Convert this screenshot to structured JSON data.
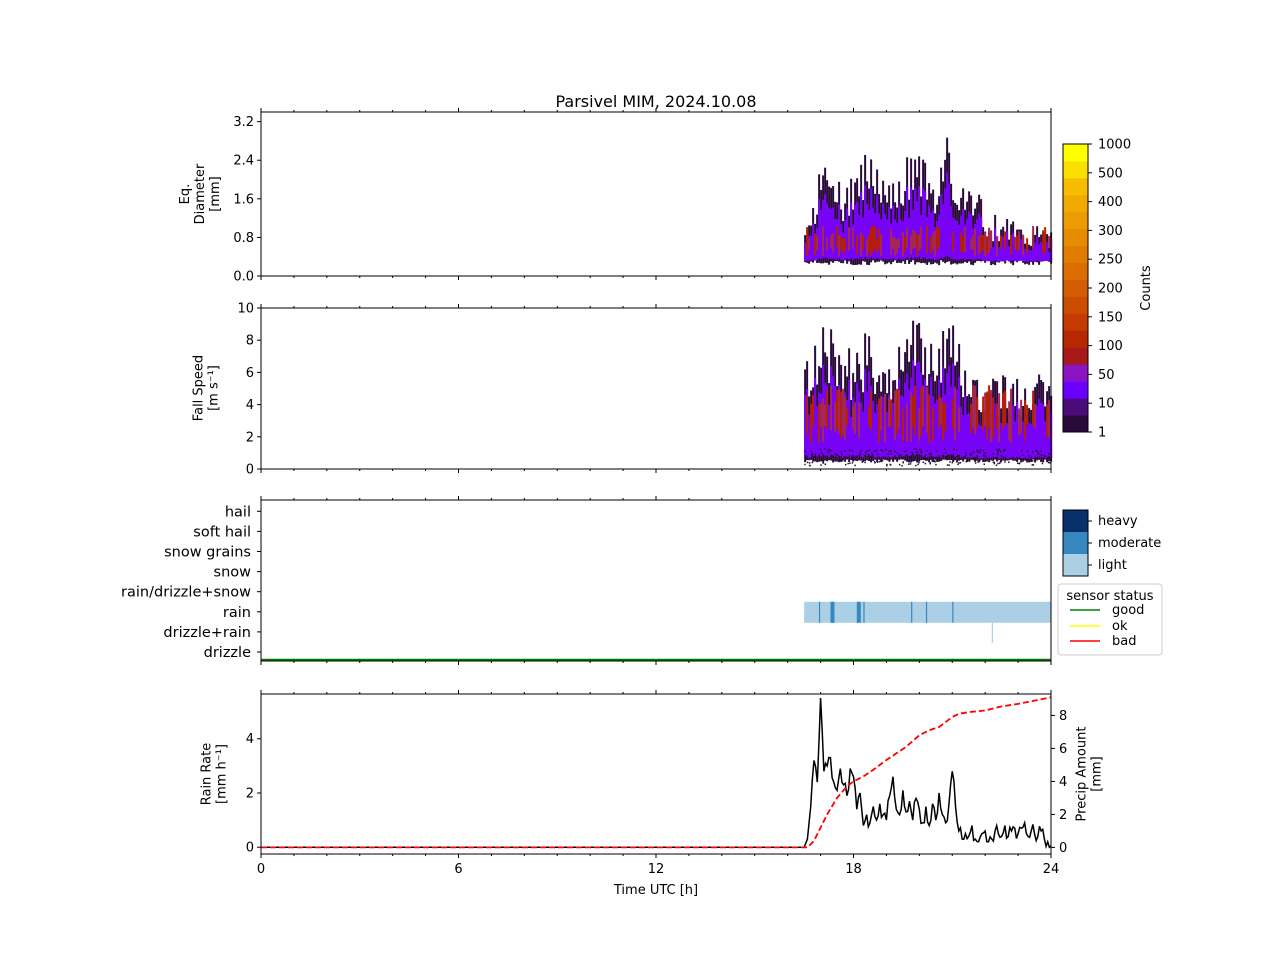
{
  "title": "Parsivel MIM, 2024.10.08",
  "colors": {
    "low_density": "#2a0a3a",
    "mid_density": "#7a00ff",
    "high_density": "#b81e00",
    "precip_light": "#abd0e6",
    "precip_moderate": "#3787c0",
    "precip_heavy": "#08306b",
    "status_good": "#008000",
    "status_ok": "#ffff00",
    "status_bad": "#ff0000",
    "rain_rate_line": "#000000",
    "precip_amount_line": "#ff0000"
  },
  "chart_data": [
    {
      "type": "heatmap",
      "panel": "diameter",
      "ylabel_lines": [
        "Eq.",
        "Diameter",
        "[mm]"
      ],
      "yticks": [
        "0.0",
        "0.8",
        "1.6",
        "2.4",
        "3.2"
      ],
      "ylim": [
        0,
        3.4
      ],
      "xlim": [
        0,
        24
      ],
      "data_start_h": 16.5,
      "data_end_h": 24,
      "base_mm": 0.28,
      "envelope_tops_mm": [
        1.1,
        1.8,
        2.3,
        2.5,
        2.2,
        1.9,
        2.6,
        2.9,
        2.4,
        2.0,
        1.9,
        2.2,
        2.6,
        3.0,
        2.5,
        2.2,
        2.8,
        3.0,
        2.3,
        2.0,
        1.8,
        1.6,
        1.3,
        1.2,
        1.2,
        1.1,
        1.0,
        1.1,
        1.0,
        1.0
      ],
      "core_range_mm": [
        0.5,
        1.0
      ]
    },
    {
      "type": "heatmap",
      "panel": "fall_speed",
      "ylabel_lines": [
        "Fall Speed",
        "[m s⁻¹]"
      ],
      "yticks": [
        "0",
        "2",
        "4",
        "6",
        "8",
        "10"
      ],
      "ylim": [
        0,
        10
      ],
      "xlim": [
        0,
        24
      ],
      "data_start_h": 16.5,
      "data_end_h": 24,
      "base_ms": 0.5,
      "envelope_tops_ms": [
        6.8,
        8.5,
        8.9,
        9.0,
        8.2,
        7.5,
        8.0,
        8.6,
        8.0,
        7.2,
        7.0,
        7.8,
        8.2,
        9.8,
        8.6,
        8.0,
        9.0,
        9.8,
        8.5,
        7.6,
        6.5,
        6.0,
        6.2,
        5.8,
        6.0,
        5.8,
        6.0,
        5.9,
        6.0,
        5.9
      ],
      "core_range_ms": [
        2.2,
        5.0
      ]
    },
    {
      "type": "heatmap",
      "panel": "precip_type",
      "categories": [
        "drizzle",
        "drizzle+rain",
        "rain",
        "rain/drizzle+snow",
        "snow",
        "snow grains",
        "soft hail",
        "hail"
      ],
      "rain_band": {
        "start_h": 16.5,
        "end_h": 24,
        "intensity": "light"
      },
      "moderate_times_h": [
        16.95,
        17.3,
        17.35,
        18.1,
        18.3,
        19.75,
        20.2,
        21.0
      ],
      "drizzle_rain_times_h": [
        22.2
      ],
      "sensor_status": {
        "value": "good",
        "start_h": 0,
        "end_h": 24
      }
    },
    {
      "type": "line",
      "panel": "rain_rate",
      "xlabel": "Time UTC [h]",
      "xticks": [
        "0",
        "6",
        "12",
        "18",
        "24"
      ],
      "xlim": [
        0,
        24
      ],
      "ylabel_lines": [
        "Rain Rate",
        "[mm h⁻¹]"
      ],
      "ylabel2_lines": [
        "Precip Amount",
        "[mm]"
      ],
      "yticks": [
        "0",
        "2",
        "4"
      ],
      "y2ticks": [
        "0",
        "2",
        "4",
        "6",
        "8"
      ],
      "ylim": [
        -0.25,
        5.65
      ],
      "y2lim": [
        -0.4,
        9.3
      ],
      "series": [
        {
          "axis": "left",
          "x": [
            0,
            16.5,
            16.6,
            16.7,
            16.8,
            16.9,
            17.0,
            17.1,
            17.2,
            17.3,
            17.4,
            17.5,
            17.6,
            17.7,
            17.8,
            17.9,
            18.0,
            18.1,
            18.2,
            18.3,
            18.4,
            18.5,
            18.6,
            18.7,
            18.8,
            18.9,
            19.0,
            19.1,
            19.2,
            19.3,
            19.4,
            19.5,
            19.6,
            19.7,
            19.8,
            19.9,
            20.0,
            20.1,
            20.2,
            20.3,
            20.4,
            20.5,
            20.6,
            20.7,
            20.8,
            20.9,
            21.0,
            21.1,
            21.2,
            21.3,
            21.4,
            21.5,
            21.6,
            21.7,
            21.8,
            21.9,
            22.0,
            22.1,
            22.2,
            22.3,
            22.4,
            22.5,
            22.6,
            22.7,
            22.8,
            22.9,
            23.0,
            23.1,
            23.2,
            23.3,
            23.4,
            23.5,
            23.6,
            23.7,
            23.8,
            23.9,
            24.0
          ],
          "values": [
            0,
            0,
            0.3,
            1.5,
            3.2,
            2.4,
            5.5,
            2.8,
            3.0,
            3.3,
            2.4,
            2.1,
            2.9,
            2.3,
            1.9,
            2.9,
            2.6,
            1.4,
            2.0,
            0.8,
            1.2,
            0.9,
            1.5,
            1.0,
            1.6,
            1.2,
            1.0,
            1.9,
            2.6,
            1.4,
            1.2,
            2.1,
            1.3,
            1.7,
            1.0,
            1.8,
            1.4,
            0.9,
            1.5,
            0.8,
            1.6,
            1.0,
            2.0,
            1.2,
            0.9,
            1.6,
            2.8,
            1.5,
            0.6,
            0.3,
            0.5,
            0.4,
            0.8,
            0.3,
            0.2,
            0.5,
            0.6,
            0.2,
            0.3,
            0.6,
            0.5,
            0.4,
            0.8,
            0.4,
            0.6,
            0.7,
            0.5,
            0.7,
            0.9,
            0.4,
            0.6,
            0.5,
            0.4,
            0.6,
            0.3,
            0.2,
            0.05
          ]
        },
        {
          "axis": "right",
          "x": [
            0,
            16.6,
            16.8,
            17.0,
            17.2,
            17.5,
            17.8,
            18.0,
            18.3,
            18.6,
            19.0,
            19.3,
            19.6,
            20.0,
            20.3,
            20.6,
            21.0,
            21.2,
            21.5,
            22.0,
            22.5,
            23.0,
            23.5,
            24.0
          ],
          "values": [
            0,
            0,
            0.4,
            1.2,
            2.0,
            3.0,
            3.7,
            4.0,
            4.3,
            4.7,
            5.3,
            5.7,
            6.1,
            6.8,
            7.1,
            7.3,
            7.9,
            8.1,
            8.2,
            8.3,
            8.55,
            8.7,
            8.9,
            9.1
          ]
        }
      ]
    }
  ],
  "colorbar": {
    "label": "Counts",
    "ticks": [
      "1",
      "10",
      "50",
      "100",
      "150",
      "200",
      "250",
      "300",
      "400",
      "500",
      "1000"
    ],
    "colors": [
      "#2a0a3a",
      "#4a0c7a",
      "#6a00ff",
      "#8a14c4",
      "#a81a1a",
      "#b82800",
      "#c43a00",
      "#cc4c00",
      "#d35c00",
      "#da6c00",
      "#e07c00",
      "#e68c00",
      "#eb9c00",
      "#f0aa00",
      "#f5bc00",
      "#fae000",
      "#ffff00"
    ]
  },
  "intensity_legend": {
    "labels": [
      "heavy",
      "moderate",
      "light"
    ]
  },
  "status_legend": {
    "title": "sensor status",
    "items": [
      "good",
      "ok",
      "bad"
    ]
  }
}
